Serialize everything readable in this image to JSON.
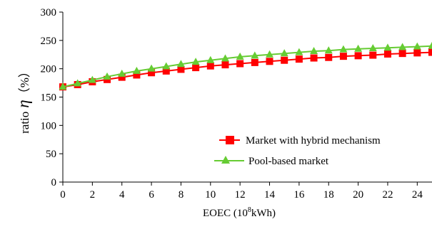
{
  "chart_data": {
    "type": "line",
    "xlabel": "EOEC (10",
    "xlabel_sup": "8",
    "xlabel_suffix": "kWh)",
    "ylabel_prefix": "ratio",
    "ylabel_symbol": "η",
    "ylabel_suffix": "（%）",
    "xlim": [
      0,
      25
    ],
    "ylim": [
      0,
      300
    ],
    "xticks": [
      0,
      2,
      4,
      6,
      8,
      10,
      12,
      14,
      16,
      18,
      20,
      22,
      24
    ],
    "yticks": [
      0,
      50,
      100,
      150,
      200,
      250,
      300
    ],
    "grid": false,
    "legend_position": "bottom-right",
    "x": [
      0,
      1,
      2,
      3,
      4,
      5,
      6,
      7,
      8,
      9,
      10,
      11,
      12,
      13,
      14,
      15,
      16,
      17,
      18,
      19,
      20,
      21,
      22,
      23,
      24,
      25
    ],
    "series": [
      {
        "name": "Market with hybrid mechanism",
        "color": "#ff0000",
        "marker": "square",
        "values": [
          168,
          172,
          177,
          181,
          185,
          189,
          193,
          196,
          199,
          202,
          205,
          207,
          209,
          211,
          213,
          215,
          217,
          219,
          220,
          222,
          223,
          224,
          226,
          227,
          228,
          229
        ]
      },
      {
        "name": "Pool-based market",
        "color": "#66cc33",
        "marker": "triangle",
        "values": [
          168,
          174,
          180,
          186,
          191,
          196,
          200,
          204,
          208,
          212,
          215,
          218,
          221,
          223,
          225,
          227,
          229,
          231,
          232,
          234,
          235,
          236,
          237,
          238,
          239,
          240
        ]
      }
    ]
  }
}
